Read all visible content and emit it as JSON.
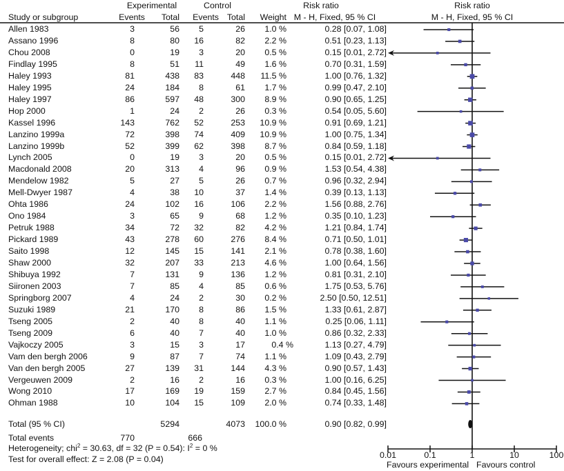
{
  "chart_data": {
    "type": "forest",
    "header": {
      "study": "Study or subgroup",
      "experimental_group": "Experimental",
      "control_group": "Control",
      "events": "Events",
      "total": "Total",
      "weight": "Weight",
      "risk_ratio_title": "Risk ratio",
      "risk_ratio_method": "M - H, Fixed, 95 % CI",
      "plot_title": "Risk ratio",
      "plot_method": "M - H, Fixed, 95 % CI"
    },
    "studies": [
      {
        "name": "Allen 1983",
        "exp_events": "3",
        "exp_total": "56",
        "ctl_events": "5",
        "ctl_total": "26",
        "weight": "1.0 %",
        "rr_text": "0.28 [0.07, 1.08]",
        "rr": 0.28,
        "lo": 0.07,
        "hi": 1.08
      },
      {
        "name": "Assano 1996",
        "exp_events": "8",
        "exp_total": "80",
        "ctl_events": "16",
        "ctl_total": "82",
        "weight": "2.2 %",
        "rr_text": "0.51 [0.23, 1.13]",
        "rr": 0.51,
        "lo": 0.23,
        "hi": 1.13
      },
      {
        "name": "Chou 2008",
        "exp_events": "0",
        "exp_total": "19",
        "ctl_events": "3",
        "ctl_total": "20",
        "weight": "0.5 %",
        "rr_text": "0.15 [0.01, 2.72]",
        "rr": 0.15,
        "lo": 0.01,
        "hi": 2.72
      },
      {
        "name": "Findlay 1995",
        "exp_events": "8",
        "exp_total": "51",
        "ctl_events": "11",
        "ctl_total": "49",
        "weight": "1.6 %",
        "rr_text": "0.70 [0.31, 1.59]",
        "rr": 0.7,
        "lo": 0.31,
        "hi": 1.59
      },
      {
        "name": "Haley 1993",
        "exp_events": "81",
        "exp_total": "438",
        "ctl_events": "83",
        "ctl_total": "448",
        "weight": "11.5 %",
        "rr_text": "1.00 [0.76, 1.32]",
        "rr": 1.0,
        "lo": 0.76,
        "hi": 1.32
      },
      {
        "name": "Haley 1995",
        "exp_events": "24",
        "exp_total": "184",
        "ctl_events": "8",
        "ctl_total": "61",
        "weight": "1.7 %",
        "rr_text": "0.99 [0.47, 2.10]",
        "rr": 0.99,
        "lo": 0.47,
        "hi": 2.1
      },
      {
        "name": "Haley 1997",
        "exp_events": "86",
        "exp_total": "597",
        "ctl_events": "48",
        "ctl_total": "300",
        "weight": "8.9 %",
        "rr_text": "0.90 [0.65, 1.25]",
        "rr": 0.9,
        "lo": 0.65,
        "hi": 1.25
      },
      {
        "name": "Hop 2000",
        "exp_events": "1",
        "exp_total": "24",
        "ctl_events": "2",
        "ctl_total": "26",
        "weight": "0.3 %",
        "rr_text": "0.54 [0.05, 5.60]",
        "rr": 0.54,
        "lo": 0.05,
        "hi": 5.6
      },
      {
        "name": "Kassel 1996",
        "exp_events": "143",
        "exp_total": "762",
        "ctl_events": "52",
        "ctl_total": "253",
        "weight": "10.9 %",
        "rr_text": "0.91 [0.69, 1.21]",
        "rr": 0.91,
        "lo": 0.69,
        "hi": 1.21
      },
      {
        "name": "Lanzino 1999a",
        "exp_events": "72",
        "exp_total": "398",
        "ctl_events": "74",
        "ctl_total": "409",
        "weight": "10.9 %",
        "rr_text": "1.00 [0.75, 1.34]",
        "rr": 1.0,
        "lo": 0.75,
        "hi": 1.34
      },
      {
        "name": "Lanzino 1999b",
        "exp_events": "52",
        "exp_total": "399",
        "ctl_events": "62",
        "ctl_total": "398",
        "weight": "8.7 %",
        "rr_text": "0.84 [0.59, 1.18]",
        "rr": 0.84,
        "lo": 0.59,
        "hi": 1.18
      },
      {
        "name": "Lynch 2005",
        "exp_events": "0",
        "exp_total": "19",
        "ctl_events": "3",
        "ctl_total": "20",
        "weight": "0.5 %",
        "rr_text": "0.15 [0.01, 2.72]",
        "rr": 0.15,
        "lo": 0.01,
        "hi": 2.72
      },
      {
        "name": "Macdonald 2008",
        "exp_events": "20",
        "exp_total": "313",
        "ctl_events": "4",
        "ctl_total": "96",
        "weight": "0.9 %",
        "rr_text": "1.53 [0.54, 4.38]",
        "rr": 1.53,
        "lo": 0.54,
        "hi": 4.38
      },
      {
        "name": "Mendelow 1982",
        "exp_events": "5",
        "exp_total": "27",
        "ctl_events": "5",
        "ctl_total": "26",
        "weight": "0.7 %",
        "rr_text": "0.96 [0.32, 2.94]",
        "rr": 0.96,
        "lo": 0.32,
        "hi": 2.94
      },
      {
        "name": "Mell-Dwyer 1987",
        "exp_events": "4",
        "exp_total": "38",
        "ctl_events": "10",
        "ctl_total": "37",
        "weight": "1.4 %",
        "rr_text": "0.39 [0.13, 1.13]",
        "rr": 0.39,
        "lo": 0.13,
        "hi": 1.13
      },
      {
        "name": "Ohta 1986",
        "exp_events": "24",
        "exp_total": "102",
        "ctl_events": "16",
        "ctl_total": "106",
        "weight": "2.2 %",
        "rr_text": "1.56 [0.88, 2.76]",
        "rr": 1.56,
        "lo": 0.88,
        "hi": 2.76
      },
      {
        "name": "Ono 1984",
        "exp_events": "3",
        "exp_total": "65",
        "ctl_events": "9",
        "ctl_total": "68",
        "weight": "1.2 %",
        "rr_text": "0.35 [0.10, 1.23]",
        "rr": 0.35,
        "lo": 0.1,
        "hi": 1.23
      },
      {
        "name": "Petruk 1988",
        "exp_events": "34",
        "exp_total": "72",
        "ctl_events": "32",
        "ctl_total": "82",
        "weight": "4.2 %",
        "rr_text": "1.21 [0.84, 1.74]",
        "rr": 1.21,
        "lo": 0.84,
        "hi": 1.74
      },
      {
        "name": "Pickard 1989",
        "exp_events": "43",
        "exp_total": "278",
        "ctl_events": "60",
        "ctl_total": "276",
        "weight": "8.4 %",
        "rr_text": "0.71 [0.50, 1.01]",
        "rr": 0.71,
        "lo": 0.5,
        "hi": 1.01
      },
      {
        "name": "Saito 1998",
        "exp_events": "12",
        "exp_total": "145",
        "ctl_events": "15",
        "ctl_total": "141",
        "weight": "2.1 %",
        "rr_text": "0.78 [0.38, 1.60]",
        "rr": 0.78,
        "lo": 0.38,
        "hi": 1.6
      },
      {
        "name": "Shaw 2000",
        "exp_events": "32",
        "exp_total": "207",
        "ctl_events": "33",
        "ctl_total": "213",
        "weight": "4.6 %",
        "rr_text": "1.00 [0.64, 1.56]",
        "rr": 1.0,
        "lo": 0.64,
        "hi": 1.56
      },
      {
        "name": "Shibuya 1992",
        "exp_events": "7",
        "exp_total": "131",
        "ctl_events": "9",
        "ctl_total": "136",
        "weight": "1.2 %",
        "rr_text": "0.81 [0.31, 2.10]",
        "rr": 0.81,
        "lo": 0.31,
        "hi": 2.1
      },
      {
        "name": "Siironen 2003",
        "exp_events": "7",
        "exp_total": "85",
        "ctl_events": "4",
        "ctl_total": "85",
        "weight": "0.6 %",
        "rr_text": "1.75 [0.53, 5.76]",
        "rr": 1.75,
        "lo": 0.53,
        "hi": 5.76
      },
      {
        "name": "Springborg 2007",
        "exp_events": "4",
        "exp_total": "24",
        "ctl_events": "2",
        "ctl_total": "30",
        "weight": "0.2 %",
        "rr_text": "2.50 [0.50, 12.51]",
        "rr": 2.5,
        "lo": 0.5,
        "hi": 12.51
      },
      {
        "name": "Suzuki 1989",
        "exp_events": "21",
        "exp_total": "170",
        "ctl_events": "8",
        "ctl_total": "86",
        "weight": "1.5 %",
        "rr_text": "1.33 [0.61, 2.87]",
        "rr": 1.33,
        "lo": 0.61,
        "hi": 2.87
      },
      {
        "name": "Tseng 2005",
        "exp_events": "2",
        "exp_total": "40",
        "ctl_events": "8",
        "ctl_total": "40",
        "weight": "1.1 %",
        "rr_text": "0.25 [0.06, 1.11]",
        "rr": 0.25,
        "lo": 0.06,
        "hi": 1.11
      },
      {
        "name": "Tseng 2009",
        "exp_events": "6",
        "exp_total": "40",
        "ctl_events": "7",
        "ctl_total": "40",
        "weight": "1.0 %",
        "rr_text": "0.86 [0.32, 2.33]",
        "rr": 0.86,
        "lo": 0.32,
        "hi": 2.33
      },
      {
        "name": "Vajkoczy 2005",
        "exp_events": "3",
        "exp_total": "15",
        "ctl_events": "3",
        "ctl_total": "17",
        "weight": "0.4 %",
        "rr_text": "1.13 [0.27, 4.79]",
        "rr": 1.13,
        "lo": 0.27,
        "hi": 4.79
      },
      {
        "name": "Vam den bergh 2006",
        "exp_events": "9",
        "exp_total": "87",
        "ctl_events": "7",
        "ctl_total": "74",
        "weight": "1.1 %",
        "rr_text": "1.09 [0.43, 2.79]",
        "rr": 1.09,
        "lo": 0.43,
        "hi": 2.79
      },
      {
        "name": "Van den bergh 2005",
        "exp_events": "27",
        "exp_total": "139",
        "ctl_events": "31",
        "ctl_total": "144",
        "weight": "4.3 %",
        "rr_text": "0.90 [0.57, 1.43]",
        "rr": 0.9,
        "lo": 0.57,
        "hi": 1.43
      },
      {
        "name": "Vergeuwen 2009",
        "exp_events": "2",
        "exp_total": "16",
        "ctl_events": "2",
        "ctl_total": "16",
        "weight": "0.3 %",
        "rr_text": "1.00 [0.16, 6.25]",
        "rr": 1.0,
        "lo": 0.16,
        "hi": 6.25
      },
      {
        "name": "Wong 2010",
        "exp_events": "17",
        "exp_total": "169",
        "ctl_events": "19",
        "ctl_total": "159",
        "weight": "2.7 %",
        "rr_text": "0.84 [0.45, 1.56]",
        "rr": 0.84,
        "lo": 0.45,
        "hi": 1.56
      },
      {
        "name": "Ohman 1988",
        "exp_events": "10",
        "exp_total": "104",
        "ctl_events": "15",
        "ctl_total": "109",
        "weight": "2.0 %",
        "rr_text": "0.74 [0.33, 1.48]",
        "rr": 0.74,
        "lo": 0.33,
        "hi": 1.48
      }
    ],
    "total": {
      "label": "Total (95 % CI)",
      "exp_total": "5294",
      "ctl_total": "4073",
      "weight": "100.0 %",
      "rr_text": "0.90 [0.82, 0.99]",
      "rr": 0.9,
      "lo": 0.82,
      "hi": 0.99
    },
    "total_events": {
      "label": "Total events",
      "exp": "770",
      "ctl": "666"
    },
    "heterogeneity": {
      "prefix": "Heterogeneity; chi",
      "sup1": "2",
      "middle": " = 30.63, df = 32 (P = 0.54): I",
      "sup2": "2",
      "suffix": " = 0 %"
    },
    "overall_effect": "Test for overall effect: Z = 2.08 (P = 0.04)",
    "x_axis": {
      "scale": "log",
      "range": [
        0.01,
        100
      ],
      "ticks": [
        0.01,
        0.1,
        1,
        10,
        100
      ],
      "tick_labels": [
        "0.01",
        "0.1",
        "1",
        "10",
        "100"
      ],
      "left_label": "Favours experimental",
      "right_label": "Favours control"
    },
    "colors": {
      "point": "#4a4aa8",
      "line": "#111111",
      "text": "#111111"
    }
  }
}
